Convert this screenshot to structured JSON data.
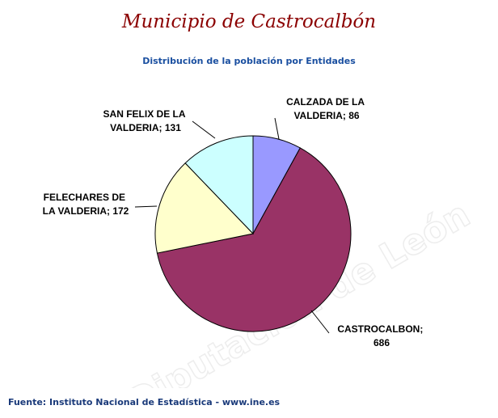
{
  "page": {
    "title": "Municipio de Castrocalbón",
    "subtitle": "Distribución de la población por Entidades",
    "footer": "Fuente: Instituto Nacional de Estadística - www.ine.es",
    "watermark": "Diputación de León"
  },
  "chart_data": {
    "type": "pie",
    "title": "Distribución de la población por Entidades",
    "slices": [
      {
        "label": "CALZADA DE LA VALDERIA",
        "value": 86,
        "color": "#9999ff"
      },
      {
        "label": "CASTROCALBON",
        "value": 686,
        "color": "#993366"
      },
      {
        "label": "FELECHARES DE LA VALDERIA",
        "value": 172,
        "color": "#ffffcc"
      },
      {
        "label": "SAN FELIX DE LA VALDERIA",
        "value": 131,
        "color": "#ccffff"
      }
    ],
    "labels": [
      {
        "line1": "CALZADA DE LA",
        "line2": "VALDERIA; 86"
      },
      {
        "line1": "CASTROCALBON;",
        "line2": "686"
      },
      {
        "line1": "FELECHARES DE",
        "line2": "LA VALDERIA; 172"
      },
      {
        "line1": "SAN FELIX DE LA",
        "line2": "VALDERIA; 131"
      }
    ]
  }
}
